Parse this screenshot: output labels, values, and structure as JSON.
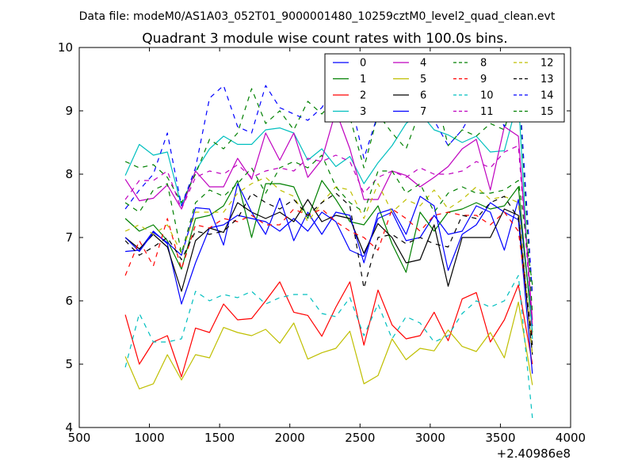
{
  "chart_data": {
    "type": "line",
    "suptitle": "Data file: modeM0/AS1A03_052T01_9000001480_10259cztM0_level2_quad_clean.evt",
    "title": "Quadrant 3 module wise count rates with 100.0s bins.",
    "xlabel": "",
    "ylabel": "",
    "x_offset_label": "+2.40986e8",
    "xlim": [
      500,
      4000
    ],
    "ylim": [
      4,
      10
    ],
    "xticks": [
      500,
      1000,
      1500,
      2000,
      2500,
      3000,
      3500,
      4000
    ],
    "yticks": [
      4,
      5,
      6,
      7,
      8,
      9,
      10
    ],
    "legend_position": "top-right",
    "x": [
      828,
      928,
      1028,
      1128,
      1228,
      1328,
      1428,
      1528,
      1628,
      1728,
      1828,
      1928,
      2028,
      2128,
      2228,
      2328,
      2428,
      2528,
      2628,
      2728,
      2828,
      2928,
      3028,
      3128,
      3228,
      3328,
      3428,
      3528,
      3628,
      3728
    ],
    "series": [
      {
        "name": "0",
        "color": "#0000ff",
        "dash": "solid",
        "values": [
          6.78,
          6.8,
          7.1,
          6.9,
          5.95,
          6.6,
          7.15,
          7.2,
          7.35,
          7.3,
          7.25,
          7.1,
          7.3,
          7.1,
          7.4,
          7.25,
          6.8,
          6.7,
          7.3,
          7.4,
          6.95,
          7.0,
          7.35,
          7.05,
          7.1,
          7.5,
          7.4,
          6.8,
          7.6,
          5.6
        ]
      },
      {
        "name": "1",
        "color": "#008000",
        "dash": "solid",
        "values": [
          7.3,
          7.1,
          7.2,
          6.95,
          6.5,
          7.3,
          7.35,
          7.5,
          7.9,
          7.0,
          7.85,
          7.85,
          7.8,
          7.3,
          7.9,
          7.6,
          7.25,
          7.2,
          7.5,
          6.9,
          6.45,
          7.4,
          7.1,
          7.4,
          7.45,
          7.55,
          7.45,
          7.5,
          7.8,
          5.5
        ]
      },
      {
        "name": "2",
        "color": "#ff0000",
        "dash": "solid",
        "values": [
          5.78,
          5.0,
          5.35,
          5.45,
          4.8,
          5.57,
          5.5,
          5.95,
          5.7,
          5.72,
          6.0,
          6.3,
          5.82,
          5.77,
          5.44,
          5.9,
          6.3,
          5.3,
          6.17,
          5.62,
          5.4,
          5.45,
          5.82,
          5.37,
          6.03,
          6.13,
          5.35,
          5.7,
          6.25,
          5.0
        ]
      },
      {
        "name": "3",
        "color": "#00bfbf",
        "dash": "solid",
        "values": [
          7.98,
          8.47,
          8.3,
          8.35,
          7.5,
          8.05,
          8.4,
          8.6,
          8.47,
          8.47,
          8.7,
          8.73,
          8.65,
          8.22,
          8.4,
          8.12,
          8.28,
          7.85,
          8.18,
          8.45,
          8.8,
          8.97,
          8.7,
          8.62,
          8.5,
          8.6,
          8.35,
          8.37,
          9.2,
          5.4
        ]
      },
      {
        "name": "4",
        "color": "#bf00bf",
        "dash": "solid",
        "values": [
          7.92,
          7.58,
          7.62,
          7.83,
          7.45,
          8.05,
          7.8,
          7.8,
          8.25,
          7.92,
          8.65,
          8.22,
          8.65,
          7.95,
          8.23,
          9.0,
          8.4,
          7.6,
          7.6,
          8.05,
          7.98,
          7.8,
          7.95,
          8.12,
          8.4,
          8.55,
          7.75,
          8.75,
          8.6,
          5.7
        ]
      },
      {
        "name": "5",
        "color": "#bfbf00",
        "dash": "solid",
        "values": [
          5.12,
          4.61,
          4.69,
          5.15,
          4.75,
          5.15,
          5.1,
          5.58,
          5.5,
          5.45,
          5.55,
          5.33,
          5.65,
          5.08,
          5.18,
          5.25,
          5.52,
          4.69,
          4.82,
          5.4,
          5.07,
          5.25,
          5.21,
          5.54,
          5.28,
          5.2,
          5.5,
          5.1,
          5.98,
          4.67
        ]
      },
      {
        "name": "6",
        "color": "#000000",
        "dash": "solid",
        "values": [
          7.0,
          6.82,
          7.05,
          6.85,
          6.15,
          6.95,
          7.15,
          7.08,
          7.55,
          7.4,
          7.3,
          7.4,
          7.25,
          7.6,
          7.25,
          7.35,
          7.3,
          6.75,
          7.22,
          7.0,
          6.6,
          6.65,
          7.2,
          6.23,
          7.0,
          7.0,
          7.0,
          7.45,
          7.35,
          5.15
        ]
      },
      {
        "name": "7",
        "color": "#0000ff",
        "dash": "solid",
        "values": [
          7.0,
          6.78,
          7.08,
          6.92,
          6.72,
          7.47,
          7.45,
          6.88,
          7.85,
          7.4,
          7.05,
          7.62,
          6.95,
          7.4,
          7.05,
          7.4,
          7.35,
          6.6,
          7.38,
          7.45,
          7.05,
          7.65,
          7.5,
          6.48,
          7.05,
          7.2,
          7.55,
          7.4,
          7.28,
          4.85
        ]
      },
      {
        "name": "8",
        "color": "#008000",
        "dash": "dashed",
        "values": [
          8.2,
          8.1,
          8.15,
          7.95,
          7.55,
          8.0,
          8.55,
          8.4,
          8.65,
          9.35,
          8.8,
          9.0,
          8.7,
          9.15,
          8.95,
          9.2,
          8.9,
          8.1,
          8.95,
          8.65,
          8.4,
          9.0,
          9.35,
          8.45,
          8.7,
          8.6,
          8.8,
          8.7,
          9.5,
          5.8
        ]
      },
      {
        "name": "9",
        "color": "#ff0000",
        "dash": "dashed",
        "values": [
          6.4,
          6.95,
          6.55,
          7.3,
          6.5,
          7.2,
          7.15,
          7.3,
          7.25,
          7.35,
          7.2,
          7.2,
          7.45,
          7.35,
          7.45,
          7.25,
          7.1,
          7.0,
          6.8,
          7.45,
          7.3,
          7.1,
          7.35,
          7.4,
          7.35,
          7.35,
          7.2,
          7.4,
          7.1,
          5.4
        ]
      },
      {
        "name": "10",
        "color": "#00bfbf",
        "dash": "dashed",
        "values": [
          4.95,
          5.8,
          5.35,
          5.35,
          5.4,
          6.15,
          6.0,
          6.1,
          6.05,
          6.15,
          5.95,
          6.05,
          6.1,
          6.1,
          5.8,
          5.75,
          6.05,
          5.45,
          5.95,
          5.4,
          5.75,
          5.65,
          5.35,
          5.45,
          5.8,
          6.0,
          5.9,
          6.0,
          6.4,
          4.15
        ]
      },
      {
        "name": "11",
        "color": "#bf00bf",
        "dash": "dashed",
        "values": [
          7.6,
          7.9,
          7.9,
          8.05,
          7.45,
          7.95,
          8.05,
          8.0,
          8.15,
          7.95,
          8.05,
          8.1,
          8.05,
          8.25,
          8.2,
          8.3,
          8.2,
          7.7,
          7.95,
          8.05,
          7.95,
          8.1,
          8.0,
          8.0,
          8.05,
          8.2,
          8.1,
          8.35,
          8.45,
          5.6
        ]
      },
      {
        "name": "12",
        "color": "#bfbf00",
        "dash": "dashed",
        "values": [
          7.1,
          7.2,
          7.05,
          7.2,
          6.75,
          7.4,
          7.4,
          7.4,
          7.7,
          7.85,
          7.95,
          7.75,
          7.65,
          7.25,
          7.55,
          7.8,
          7.75,
          7.3,
          7.85,
          7.4,
          7.6,
          7.5,
          7.75,
          7.45,
          7.6,
          7.8,
          7.6,
          7.65,
          7.55,
          5.15
        ]
      },
      {
        "name": "13",
        "color": "#000000",
        "dash": "dashed",
        "values": [
          6.95,
          6.72,
          6.85,
          7.0,
          6.65,
          7.1,
          7.05,
          7.1,
          7.3,
          7.7,
          7.55,
          7.45,
          7.6,
          7.35,
          7.55,
          7.7,
          7.5,
          6.2,
          7.0,
          7.05,
          6.9,
          7.0,
          6.9,
          6.85,
          7.35,
          7.3,
          7.55,
          7.65,
          7.3,
          5.3
        ]
      },
      {
        "name": "14",
        "color": "#0000ff",
        "dash": "dashed",
        "values": [
          7.45,
          7.75,
          8.0,
          8.65,
          7.5,
          8.1,
          9.2,
          9.4,
          8.75,
          8.65,
          9.4,
          9.05,
          8.95,
          8.85,
          9.05,
          9.4,
          9.2,
          8.25,
          8.95,
          9.4,
          8.95,
          9.15,
          8.85,
          8.45,
          8.7,
          9.1,
          9.25,
          8.75,
          9.55,
          6.1
        ]
      },
      {
        "name": "15",
        "color": "#008000",
        "dash": "dashed",
        "values": [
          7.55,
          7.4,
          7.75,
          7.85,
          6.75,
          7.55,
          7.75,
          7.65,
          7.85,
          8.1,
          7.7,
          8.1,
          8.2,
          8.1,
          8.3,
          7.8,
          7.55,
          7.4,
          8.05,
          8.05,
          7.7,
          7.85,
          7.4,
          7.7,
          7.8,
          7.7,
          7.7,
          7.75,
          7.9,
          6.25
        ]
      }
    ]
  }
}
